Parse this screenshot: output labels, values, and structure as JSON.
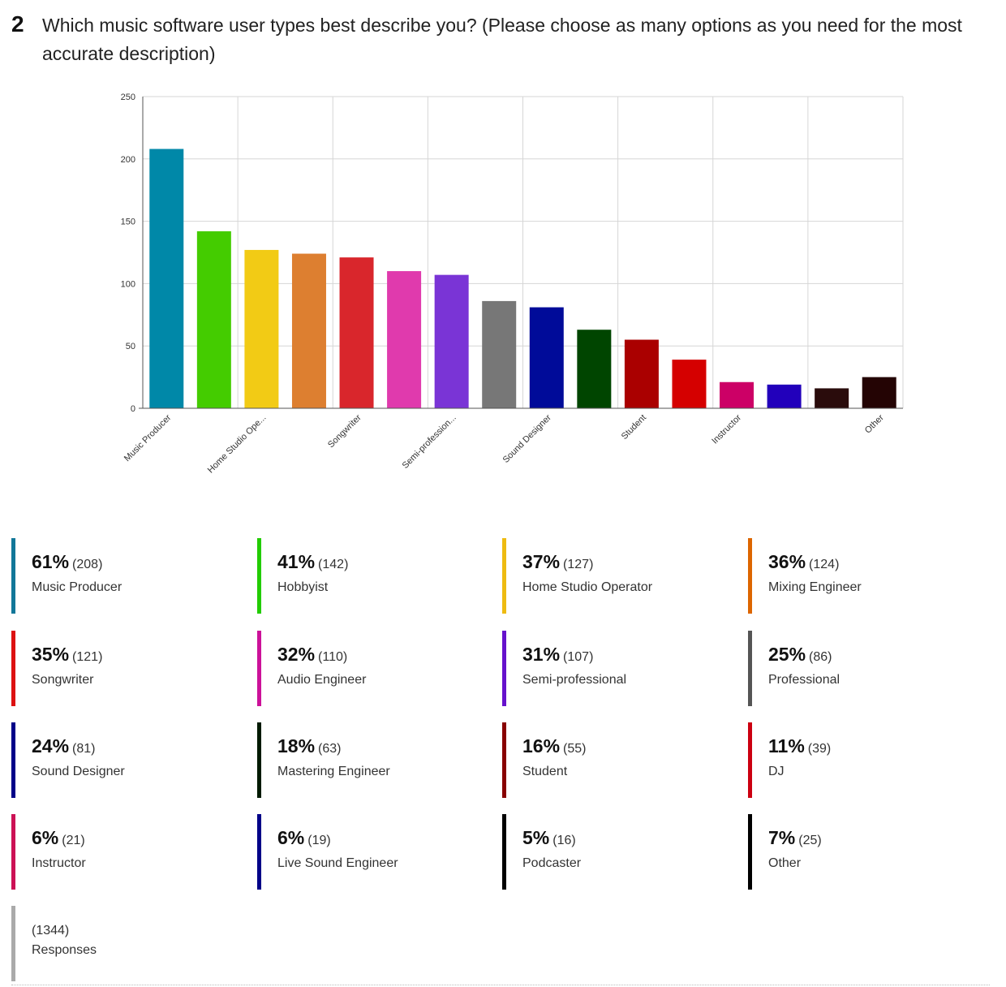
{
  "question": {
    "number": "2",
    "text": "Which music software user types best describe you? (Please choose as many options as you need for the most accurate description)"
  },
  "chart_data": {
    "type": "bar",
    "categories": [
      "Music Producer",
      "Hobbyist",
      "Home Studio Operator",
      "Mixing Engineer",
      "Songwriter",
      "Audio Engineer",
      "Semi-professional",
      "Professional",
      "Sound Designer",
      "Mastering Engineer",
      "Student",
      "DJ",
      "Instructor",
      "Live Sound Engineer",
      "Podcaster",
      "Other"
    ],
    "axis_tick_labels": [
      "Music Producer",
      "",
      "Home Studio Ope...",
      "",
      "Songwriter",
      "",
      "Semi-profession...",
      "",
      "Sound Designer",
      "",
      "Student",
      "",
      "Instructor",
      "",
      "",
      "Other"
    ],
    "values": [
      208,
      142,
      127,
      124,
      121,
      110,
      107,
      86,
      81,
      63,
      55,
      39,
      21,
      19,
      16,
      25
    ],
    "percents": [
      "61%",
      "41%",
      "37%",
      "36%",
      "35%",
      "32%",
      "31%",
      "25%",
      "24%",
      "18%",
      "16%",
      "11%",
      "6%",
      "6%",
      "5%",
      "7%"
    ],
    "colors": [
      "#0088a8",
      "#44cc00",
      "#f2cb15",
      "#dd7f30",
      "#d9262c",
      "#e03aad",
      "#7a34d6",
      "#777777",
      "#000b99",
      "#004500",
      "#aa0000",
      "#d50000",
      "#cc0066",
      "#2200bb",
      "#2a0c0c",
      "#240404"
    ],
    "legend_colors": [
      "#117799",
      "#22cc00",
      "#eebb11",
      "#dd6600",
      "#dd1111",
      "#cc1199",
      "#6611cc",
      "#555555",
      "#000088",
      "#001a00",
      "#880000",
      "#cc0011",
      "#cc1155",
      "#000088",
      "#000000",
      "#000000"
    ],
    "ylim": [
      0,
      250
    ],
    "yticks": [
      0,
      50,
      100,
      150,
      200,
      250
    ],
    "grid": true,
    "xlabel": "",
    "ylabel": ""
  },
  "legend": [
    {
      "pct": "61%",
      "count": "(208)",
      "label": "Music Producer"
    },
    {
      "pct": "41%",
      "count": "(142)",
      "label": "Hobbyist"
    },
    {
      "pct": "37%",
      "count": "(127)",
      "label": "Home Studio Operator"
    },
    {
      "pct": "36%",
      "count": "(124)",
      "label": "Mixing Engineer"
    },
    {
      "pct": "35%",
      "count": "(121)",
      "label": "Songwriter"
    },
    {
      "pct": "32%",
      "count": "(110)",
      "label": "Audio Engineer"
    },
    {
      "pct": "31%",
      "count": "(107)",
      "label": "Semi-professional"
    },
    {
      "pct": "25%",
      "count": "(86)",
      "label": "Professional"
    },
    {
      "pct": "24%",
      "count": "(81)",
      "label": "Sound Designer"
    },
    {
      "pct": "18%",
      "count": "(63)",
      "label": "Mastering Engineer"
    },
    {
      "pct": "16%",
      "count": "(55)",
      "label": "Student"
    },
    {
      "pct": "11%",
      "count": "(39)",
      "label": "DJ"
    },
    {
      "pct": "6%",
      "count": "(21)",
      "label": "Instructor"
    },
    {
      "pct": "6%",
      "count": "(19)",
      "label": "Live Sound Engineer"
    },
    {
      "pct": "5%",
      "count": "(16)",
      "label": "Podcaster"
    },
    {
      "pct": "7%",
      "count": "(25)",
      "label": "Other"
    }
  ],
  "responses": {
    "count": "(1344)",
    "label": "Responses",
    "color": "#aaaaaa"
  }
}
